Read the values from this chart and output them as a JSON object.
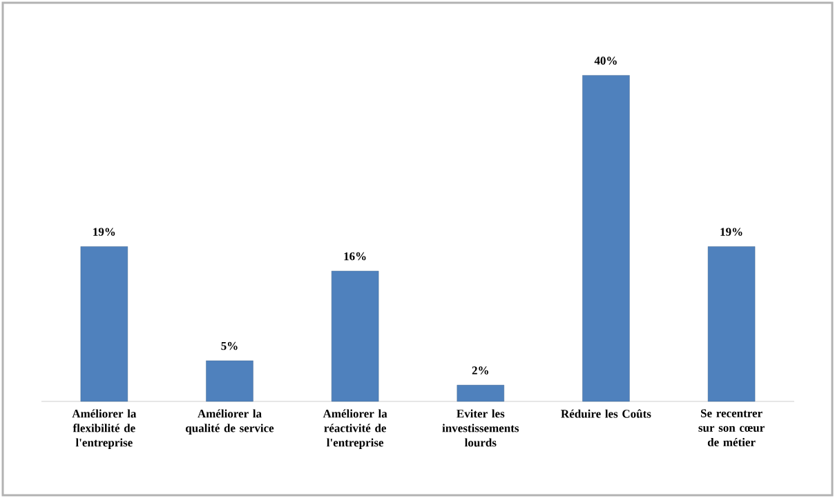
{
  "chart_data": {
    "type": "bar",
    "categories": [
      "Améliorer la flexibilité de l'entreprise",
      "Améliorer la qualité de service",
      "Améliorer la réactivité de l'entreprise",
      "Eviter les investissements lourds",
      "Réduire les Coûts",
      "Se recentrer sur son cœur  de métier"
    ],
    "values": [
      19,
      5,
      16,
      2,
      40,
      19
    ],
    "value_labels": [
      "19%",
      "5%",
      "16%",
      "2%",
      "40%",
      "19%"
    ],
    "color": "#4f81bd"
  }
}
